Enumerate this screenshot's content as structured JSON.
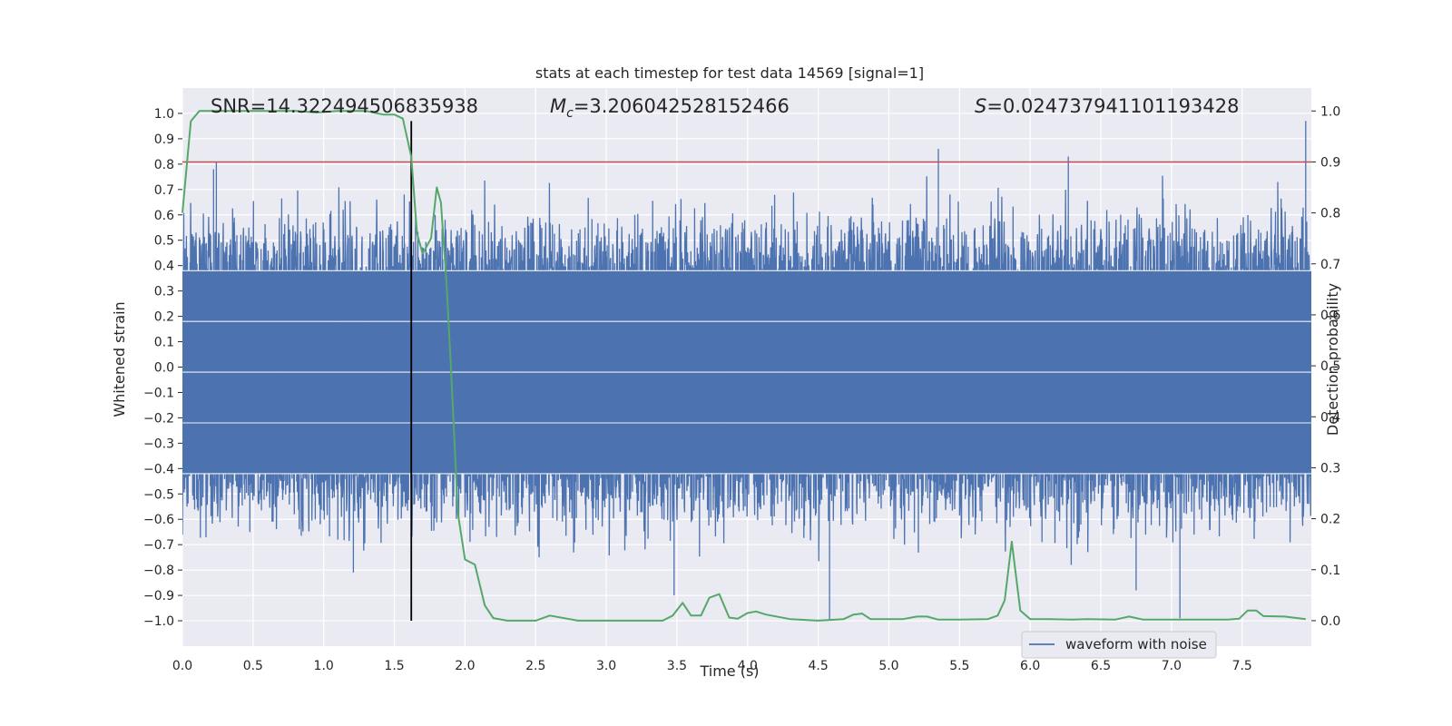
{
  "chart_data": {
    "type": "line",
    "title": "stats at each timestep for test data 14569 [signal=1]",
    "xlabel": "Time (s)",
    "ylabel_left": "Whitened strain",
    "ylabel_right": "Detection probability",
    "xlim": [
      0.0,
      7.99
    ],
    "ylim_left": [
      -1.1,
      1.1
    ],
    "ylim_right": [
      -0.05,
      1.045
    ],
    "grid": true,
    "legend_position": "lower-right",
    "xticks": [
      0.0,
      0.5,
      1.0,
      1.5,
      2.0,
      2.5,
      3.0,
      3.5,
      4.0,
      4.5,
      5.0,
      5.5,
      6.0,
      6.5,
      7.0,
      7.5
    ],
    "xtick_labels": [
      "0.0",
      "0.5",
      "1.0",
      "1.5",
      "2.0",
      "2.5",
      "3.0",
      "3.5",
      "4.0",
      "4.5",
      "5.0",
      "5.5",
      "6.0",
      "6.5",
      "7.0",
      "7.5"
    ],
    "yticks_left": [
      1.0,
      0.9,
      0.8,
      0.7,
      0.6,
      0.5,
      0.4,
      0.3,
      0.2,
      0.1,
      0.0,
      -0.1,
      -0.2,
      -0.3,
      -0.4,
      -0.5,
      -0.6,
      -0.7,
      -0.8,
      -0.9,
      -1.0
    ],
    "ytick_labels_left": [
      "1.0",
      "0.9",
      "0.8",
      "0.7",
      "0.6",
      "0.5",
      "0.4",
      "0.3",
      "0.2",
      "0.1",
      "0.0",
      "−0.1",
      "−0.2",
      "−0.3",
      "−0.4",
      "−0.5",
      "−0.6",
      "−0.7",
      "−0.8",
      "−0.9",
      "−1.0"
    ],
    "yticks_right": [
      1.0,
      0.9,
      0.8,
      0.7,
      0.6,
      0.5,
      0.4,
      0.3,
      0.2,
      0.1,
      0.0
    ],
    "ytick_labels_right": [
      "1.0",
      "0.9",
      "0.8",
      "0.7",
      "0.6",
      "0.5",
      "0.4",
      "0.3",
      "0.2",
      "0.1",
      "0.0"
    ],
    "annotations": {
      "snr": "SNR=14.322494506835938",
      "mc_symbol": "M",
      "mc_sub": "c",
      "mc_value": "=3.206042528152466",
      "s_symbol": "S",
      "s_value": "=0.024737941101193428"
    },
    "threshold": {
      "axis": "right",
      "value": 0.9,
      "color": "#c44e52"
    },
    "event_marker": {
      "x": 1.62,
      "color": "#000000"
    },
    "waveform": {
      "name": "waveform with noise",
      "color": "#4c72b0",
      "band": [
        -0.42,
        0.38
      ],
      "notable_peaks": [
        {
          "x": 0.22,
          "y": 0.78
        },
        {
          "x": 0.24,
          "y": 0.81
        },
        {
          "x": 1.21,
          "y": -0.81
        },
        {
          "x": 1.57,
          "y": 0.68
        },
        {
          "x": 3.48,
          "y": -0.9
        },
        {
          "x": 4.58,
          "y": -1.0
        },
        {
          "x": 5.35,
          "y": 0.86
        },
        {
          "x": 6.27,
          "y": 0.83
        },
        {
          "x": 6.75,
          "y": -0.88
        },
        {
          "x": 7.06,
          "y": -0.99
        },
        {
          "x": 7.95,
          "y": 0.97
        }
      ]
    },
    "detection_probability": {
      "name": "detection probability",
      "color": "#55a868",
      "x": [
        0.0,
        0.06,
        0.12,
        0.2,
        0.4,
        0.6,
        0.8,
        0.95,
        1.1,
        1.3,
        1.42,
        1.5,
        1.56,
        1.62,
        1.66,
        1.7,
        1.76,
        1.8,
        1.83,
        1.87,
        1.9,
        1.95,
        2.0,
        2.07,
        2.14,
        2.2,
        2.3,
        2.5,
        2.6,
        2.8,
        3.0,
        3.2,
        3.4,
        3.47,
        3.54,
        3.6,
        3.67,
        3.73,
        3.8,
        3.87,
        3.93,
        4.0,
        4.06,
        4.13,
        4.3,
        4.5,
        4.68,
        4.75,
        4.81,
        4.87,
        4.95,
        5.1,
        5.2,
        5.27,
        5.35,
        5.5,
        5.7,
        5.77,
        5.82,
        5.87,
        5.93,
        6.0,
        6.13,
        6.3,
        6.4,
        6.6,
        6.7,
        6.8,
        7.0,
        7.2,
        7.4,
        7.48,
        7.54,
        7.6,
        7.65,
        7.8,
        7.95
      ],
      "y": [
        0.8,
        0.98,
        1.0,
        1.0,
        1.0,
        1.0,
        1.0,
        0.997,
        1.0,
        1.0,
        0.993,
        0.993,
        0.985,
        0.91,
        0.76,
        0.72,
        0.75,
        0.85,
        0.82,
        0.66,
        0.5,
        0.21,
        0.12,
        0.11,
        0.03,
        0.005,
        0.0,
        0.0,
        0.01,
        0.0,
        0.0,
        0.0,
        0.0,
        0.01,
        0.035,
        0.01,
        0.01,
        0.045,
        0.052,
        0.006,
        0.004,
        0.015,
        0.018,
        0.012,
        0.003,
        0.0,
        0.003,
        0.012,
        0.014,
        0.003,
        0.003,
        0.003,
        0.008,
        0.008,
        0.002,
        0.002,
        0.003,
        0.01,
        0.04,
        0.155,
        0.02,
        0.003,
        0.003,
        0.002,
        0.003,
        0.002,
        0.008,
        0.002,
        0.002,
        0.002,
        0.002,
        0.004,
        0.02,
        0.02,
        0.009,
        0.008,
        0.003
      ]
    }
  }
}
